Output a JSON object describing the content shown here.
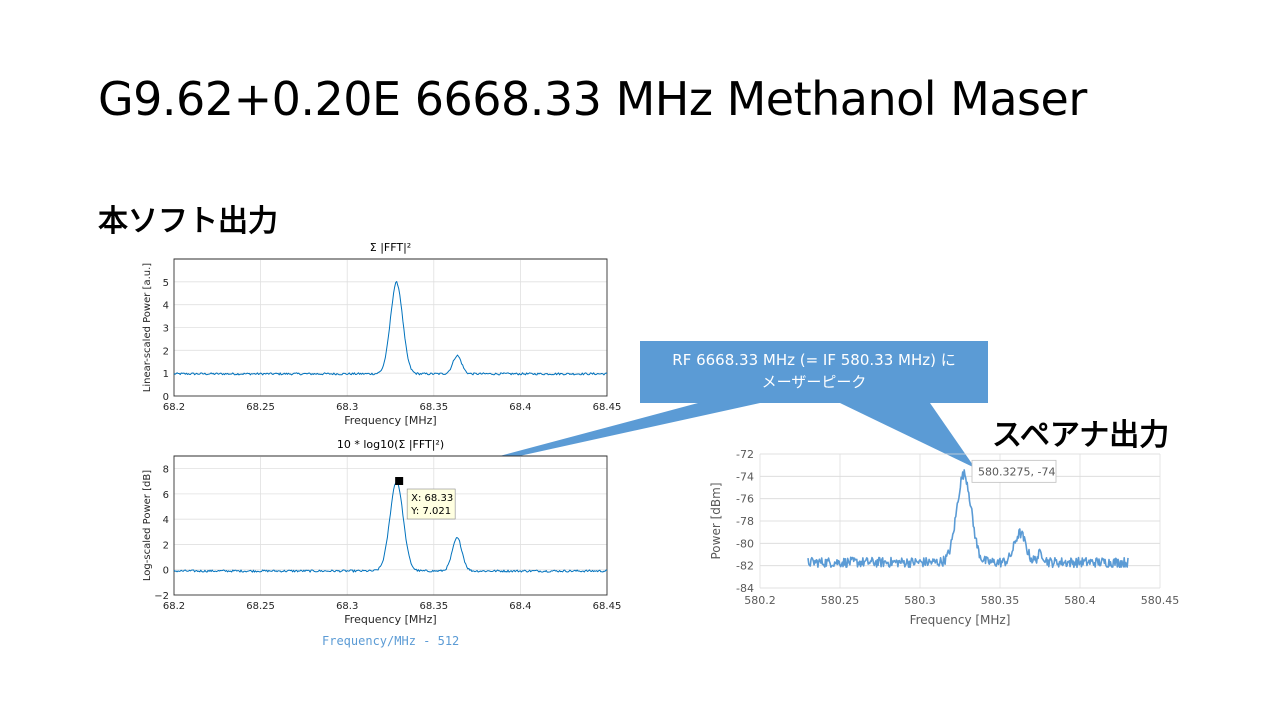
{
  "slide": {
    "title": "G9.62+0.20E 6668.33 MHz Methanol Maser",
    "section_left": "本ソフト出力",
    "section_right": "スペアナ出力",
    "caption": "Frequency/MHz - 512"
  },
  "callout": {
    "line1": "RF 6668.33 MHz (= IF 580.33 MHz) に",
    "line2": "メーザーピーク"
  },
  "colors": {
    "accent": "#5b9bd5",
    "matlab_line": "#0072bd",
    "excel_line": "#5b9bd5"
  },
  "chart_data": [
    {
      "type": "line",
      "title": "Σ |FFT|²",
      "xlabel": "Frequency [MHz]",
      "ylabel": "Linear-scaled Power [a.u.]",
      "xlim": [
        68.2,
        68.45
      ],
      "ylim": [
        0,
        6
      ],
      "xticks": [
        "68.2",
        "68.25",
        "68.3",
        "68.35",
        "68.4",
        "68.45"
      ],
      "yticks": [
        "0",
        "1",
        "2",
        "3",
        "4",
        "5"
      ],
      "grid": true,
      "series": [
        {
          "baseline": 0.97,
          "peaks": [
            {
              "x": 68.3285,
              "height": 4.0,
              "width": 0.0035
            },
            {
              "x": 68.3635,
              "height": 0.8,
              "width": 0.0025
            }
          ]
        }
      ]
    },
    {
      "type": "line",
      "title": "10 * log10(Σ |FFT|²)",
      "xlabel": "Frequency [MHz]",
      "ylabel": "Log-scaled Power [dB]",
      "xlim": [
        68.2,
        68.45
      ],
      "ylim": [
        -2,
        9
      ],
      "xticks": [
        "68.2",
        "68.25",
        "68.3",
        "68.35",
        "68.4",
        "68.45"
      ],
      "yticks": [
        "−2",
        "0",
        "2",
        "4",
        "6",
        "8"
      ],
      "grid": true,
      "series": [
        {
          "baseline": -0.1,
          "peaks": [
            {
              "x": 68.3285,
              "height": 7.1,
              "width": 0.0038
            },
            {
              "x": 68.3635,
              "height": 2.6,
              "width": 0.0028
            }
          ]
        }
      ],
      "datatip": {
        "x": 68.33,
        "y": 7.021,
        "label_x": "X: 68.33",
        "label_y": "Y: 7.021"
      }
    },
    {
      "type": "line",
      "title": "",
      "xlabel": "Frequency [MHz]",
      "ylabel": "Power  [dBm]",
      "xlim": [
        580.2,
        580.45
      ],
      "ylim": [
        -84,
        -72
      ],
      "xticks": [
        "580.2",
        "580.25",
        "580.3",
        "580.35",
        "580.4",
        "580.45"
      ],
      "yticks": [
        "-84",
        "-82",
        "-80",
        "-78",
        "-76",
        "-74",
        "-72"
      ],
      "grid": true,
      "x_range": [
        580.23,
        580.43
      ],
      "series": [
        {
          "baseline": -81.7,
          "peaks": [
            {
              "x": 580.3275,
              "height": 7.9,
              "width": 0.0045
            },
            {
              "x": 580.3625,
              "height": 2.6,
              "width": 0.0035
            },
            {
              "x": 580.3755,
              "height": 0.8,
              "width": 0.002
            }
          ]
        }
      ],
      "data_label": {
        "x": 580.3275,
        "y": -74,
        "text": "580.3275, -74"
      }
    }
  ]
}
